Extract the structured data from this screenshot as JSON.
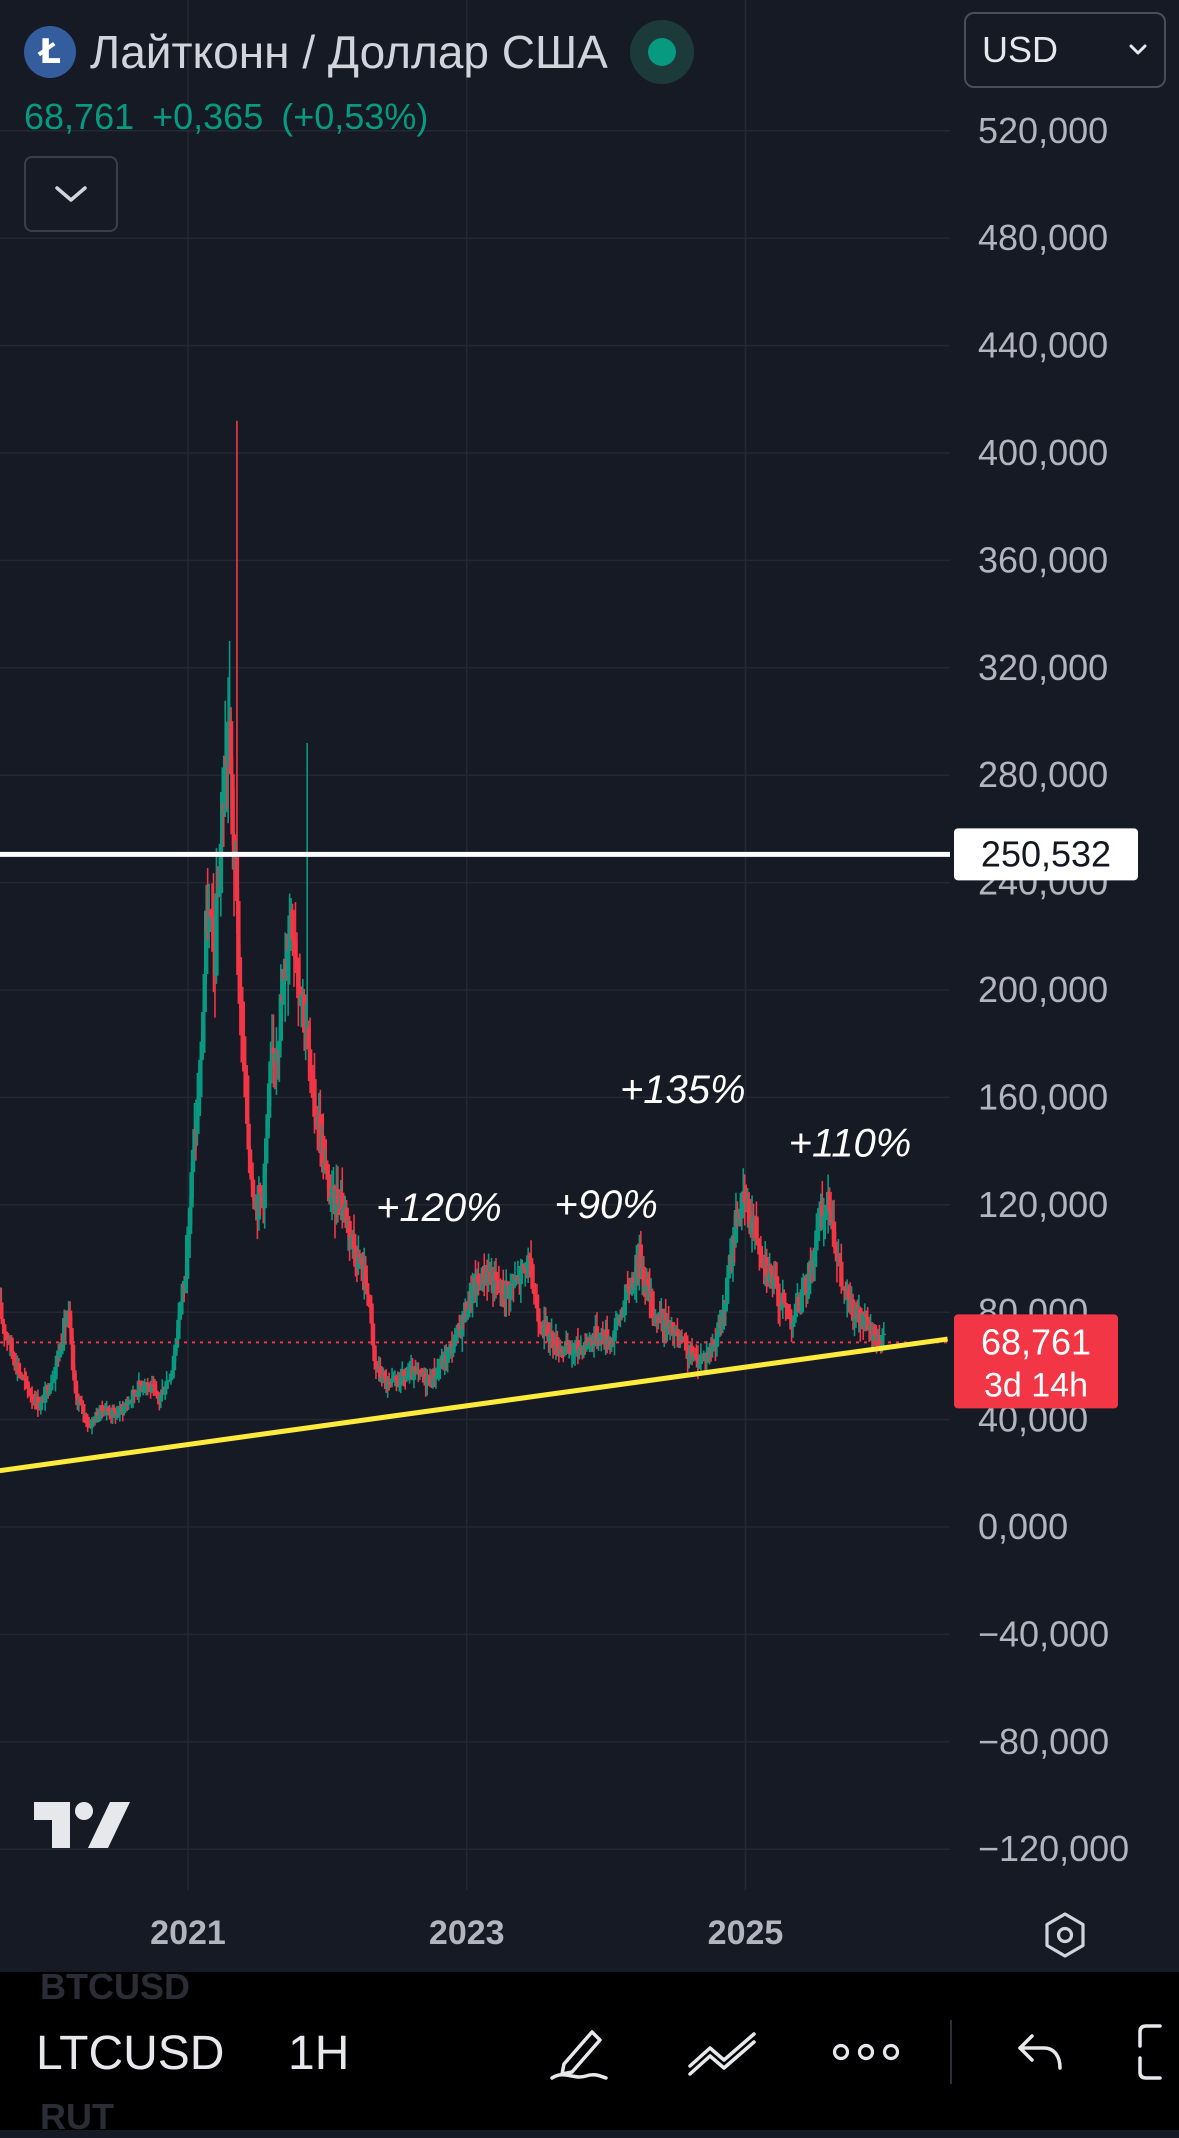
{
  "header": {
    "coin_icon_letter": "Ł",
    "title": "Лайтконн / Доллар США",
    "price": "68,761",
    "change": "+0,365",
    "change_pct": "(+0,53%)",
    "currency": "USD"
  },
  "chart_data": {
    "type": "candlestick",
    "symbol": "LTCUSD",
    "y_ticks": [
      520000,
      480000,
      440000,
      400000,
      360000,
      320000,
      280000,
      240000,
      200000,
      160000,
      120000,
      80000,
      40000,
      0,
      -40000,
      -80000,
      -120000
    ],
    "y_tick_labels": [
      "520,000",
      "480,000",
      "440,000",
      "400,000",
      "360,000",
      "320,000",
      "280,000",
      "240,000",
      "200,000",
      "160,000",
      "120,000",
      "80,000",
      "40,000",
      "0,000",
      "−40,000",
      "−80,000",
      "−120,000"
    ],
    "x_ticks": [
      "2021",
      "2023",
      "2025"
    ],
    "x_tick_values": [
      2021,
      2023,
      2025
    ],
    "xlim": [
      2019.65,
      2026.45
    ],
    "ylim": [
      -132000,
      540000
    ],
    "price_series": [
      [
        2019.65,
        82000
      ],
      [
        2019.75,
        65000
      ],
      [
        2019.85,
        52000
      ],
      [
        2019.95,
        45000
      ],
      [
        2020.05,
        58000
      ],
      [
        2020.15,
        80000
      ],
      [
        2020.2,
        50000
      ],
      [
        2020.3,
        38000
      ],
      [
        2020.4,
        44000
      ],
      [
        2020.5,
        42000
      ],
      [
        2020.6,
        48000
      ],
      [
        2020.7,
        55000
      ],
      [
        2020.8,
        47000
      ],
      [
        2020.9,
        60000
      ],
      [
        2021.0,
        100000
      ],
      [
        2021.05,
        140000
      ],
      [
        2021.1,
        170000
      ],
      [
        2021.15,
        230000
      ],
      [
        2021.2,
        210000
      ],
      [
        2021.25,
        260000
      ],
      [
        2021.3,
        300000
      ],
      [
        2021.35,
        240000
      ],
      [
        2021.4,
        180000
      ],
      [
        2021.45,
        140000
      ],
      [
        2021.5,
        120000
      ],
      [
        2021.55,
        125000
      ],
      [
        2021.6,
        165000
      ],
      [
        2021.65,
        185000
      ],
      [
        2021.7,
        200000
      ],
      [
        2021.75,
        235000
      ],
      [
        2021.8,
        210000
      ],
      [
        2021.85,
        190000
      ],
      [
        2021.9,
        160000
      ],
      [
        2021.95,
        150000
      ],
      [
        2022.0,
        130000
      ],
      [
        2022.05,
        120000
      ],
      [
        2022.1,
        125000
      ],
      [
        2022.2,
        105000
      ],
      [
        2022.3,
        90000
      ],
      [
        2022.35,
        60000
      ],
      [
        2022.45,
        52000
      ],
      [
        2022.6,
        57000
      ],
      [
        2022.75,
        55000
      ],
      [
        2022.85,
        62000
      ],
      [
        2022.95,
        72000
      ],
      [
        2023.05,
        88000
      ],
      [
        2023.15,
        95000
      ],
      [
        2023.25,
        88000
      ],
      [
        2023.35,
        90000
      ],
      [
        2023.45,
        98000
      ],
      [
        2023.55,
        75000
      ],
      [
        2023.65,
        68000
      ],
      [
        2023.75,
        65000
      ],
      [
        2023.85,
        68000
      ],
      [
        2023.95,
        72000
      ],
      [
        2024.05,
        70000
      ],
      [
        2024.15,
        85000
      ],
      [
        2024.25,
        100000
      ],
      [
        2024.35,
        80000
      ],
      [
        2024.45,
        75000
      ],
      [
        2024.55,
        68000
      ],
      [
        2024.65,
        62000
      ],
      [
        2024.75,
        65000
      ],
      [
        2024.85,
        78000
      ],
      [
        2024.95,
        118000
      ],
      [
        2025.0,
        120000
      ],
      [
        2025.08,
        112000
      ],
      [
        2025.15,
        100000
      ],
      [
        2025.25,
        85000
      ],
      [
        2025.35,
        78000
      ],
      [
        2025.45,
        90000
      ],
      [
        2025.55,
        115000
      ],
      [
        2025.62,
        120000
      ],
      [
        2025.7,
        90000
      ],
      [
        2025.78,
        80000
      ],
      [
        2025.85,
        76000
      ],
      [
        2025.92,
        72000
      ],
      [
        2026.0,
        68761
      ]
    ],
    "peak_wicks": [
      [
        2021.35,
        412000
      ],
      [
        2021.3,
        330000
      ],
      [
        2021.86,
        292000
      ]
    ],
    "horizontal_line": {
      "value": 250532,
      "label": "250,532",
      "color": "#ffffff"
    },
    "trendline": {
      "from": [
        2019.65,
        21000
      ],
      "to": [
        2026.45,
        70000
      ],
      "color": "#ffeb3b"
    },
    "last_price": {
      "value": 68761,
      "label": "68,761",
      "countdown": "3d 14h",
      "color": "#f23645"
    },
    "annotations": [
      {
        "text": "+120%",
        "x": 2022.8,
        "y": 114000
      },
      {
        "text": "+90%",
        "x": 2024.0,
        "y": 115000
      },
      {
        "text": "+135%",
        "x": 2024.55,
        "y": 158000
      },
      {
        "text": "+110%",
        "x": 2025.75,
        "y": 138000
      }
    ],
    "grid": true,
    "colors": {
      "up": "#089981",
      "down": "#f23645",
      "background": "#161a25",
      "grid": "#252833",
      "axis_text": "#b2b5be"
    }
  },
  "toolbar": {
    "ghost_top": "BTCUSD",
    "symbol": "LTCUSD",
    "interval": "1H",
    "ghost_bottom": "RUT",
    "icons": [
      "draw-icon",
      "patterns-icon",
      "more-icon",
      "undo-icon",
      "fullscreen-icon"
    ]
  }
}
